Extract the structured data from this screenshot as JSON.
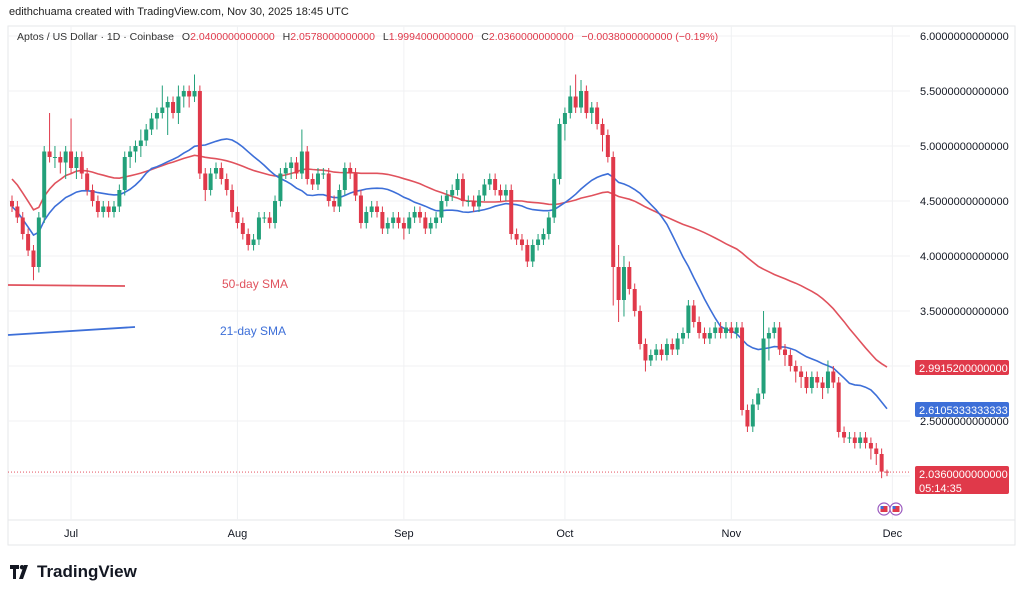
{
  "credit": "edithchuama created with TradingView.com, Nov 30, 2025 18:45 UTC",
  "legend": {
    "symbol": "Aptos / US Dollar · 1D · Coinbase",
    "o_key": "O",
    "o": "2.0400000000000",
    "h_key": "H",
    "h": "2.0578000000000",
    "l_key": "L",
    "l": "1.9994000000000",
    "c_key": "C",
    "c": "2.0360000000000",
    "change": "−0.0038000000000 (−0.19%)"
  },
  "annotations": {
    "sma50": "50-day SMA",
    "sma21": "21-day SMA"
  },
  "logo_text": "TradingView",
  "colors": {
    "up": "#22a07a",
    "down": "#e0394a",
    "sma50": "#e0525d",
    "sma21": "#3d6fd8",
    "grid": "#f0f1f3"
  },
  "chart_data": {
    "type": "candlestick",
    "interval": "1D",
    "date_range": [
      "2025-06-20",
      "2025-11-30"
    ],
    "ylim": [
      1.6,
      6.0
    ],
    "y_ticks": [
      "6.0000000000000",
      "5.5000000000000",
      "5.0000000000000",
      "4.5000000000000",
      "4.0000000000000",
      "3.5000000000000",
      "2.5000000000000"
    ],
    "y_tick_values": [
      6.0,
      5.5,
      5.0,
      4.5,
      4.0,
      3.5,
      2.5
    ],
    "x_ticks": [
      {
        "label": "Jul",
        "index": 11
      },
      {
        "label": "Aug",
        "index": 42
      },
      {
        "label": "Sep",
        "index": 73
      },
      {
        "label": "Oct",
        "index": 103
      },
      {
        "label": "Nov",
        "index": 134
      },
      {
        "label": "Dec",
        "index": 164
      }
    ],
    "price_tags": {
      "sma50": "2.9915200000000",
      "sma21": "2.6105333333333",
      "last": "2.0360000000000",
      "countdown": "05:14:35"
    },
    "sma_values": {
      "sma50": 2.99152,
      "sma21": 2.6105333333333,
      "last": 2.036
    },
    "grid": true,
    "candles_ohlc": [
      [
        4.5,
        4.55,
        4.4,
        4.45
      ],
      [
        4.45,
        4.5,
        4.3,
        4.35
      ],
      [
        4.35,
        4.4,
        4.15,
        4.2
      ],
      [
        4.2,
        4.25,
        4.0,
        4.05
      ],
      [
        4.05,
        4.1,
        3.78,
        3.9
      ],
      [
        3.9,
        4.4,
        3.85,
        4.35
      ],
      [
        4.35,
        5.0,
        4.3,
        4.95
      ],
      [
        4.95,
        5.3,
        4.85,
        4.9
      ],
      [
        4.9,
        5.0,
        4.8,
        4.9
      ],
      [
        4.9,
        4.95,
        4.75,
        4.85
      ],
      [
        4.85,
        5.0,
        4.7,
        4.95
      ],
      [
        4.95,
        5.25,
        4.75,
        4.8
      ],
      [
        4.8,
        4.95,
        4.7,
        4.9
      ],
      [
        4.9,
        4.95,
        4.7,
        4.75
      ],
      [
        4.75,
        4.8,
        4.55,
        4.6
      ],
      [
        4.6,
        4.65,
        4.45,
        4.5
      ],
      [
        4.5,
        4.55,
        4.35,
        4.4
      ],
      [
        4.4,
        4.5,
        4.35,
        4.45
      ],
      [
        4.45,
        4.5,
        4.35,
        4.4
      ],
      [
        4.4,
        4.5,
        4.35,
        4.45
      ],
      [
        4.45,
        4.65,
        4.4,
        4.6
      ],
      [
        4.6,
        4.95,
        4.55,
        4.9
      ],
      [
        4.9,
        5.0,
        4.8,
        4.95
      ],
      [
        4.95,
        5.05,
        4.85,
        5.0
      ],
      [
        5.0,
        5.15,
        4.9,
        5.05
      ],
      [
        5.05,
        5.2,
        5.0,
        5.15
      ],
      [
        5.15,
        5.3,
        5.1,
        5.25
      ],
      [
        5.25,
        5.35,
        5.15,
        5.3
      ],
      [
        5.3,
        5.55,
        5.25,
        5.35
      ],
      [
        5.35,
        5.45,
        5.1,
        5.4
      ],
      [
        5.4,
        5.45,
        5.25,
        5.3
      ],
      [
        5.3,
        5.55,
        5.2,
        5.45
      ],
      [
        5.45,
        5.55,
        5.35,
        5.5
      ],
      [
        5.5,
        5.55,
        5.35,
        5.45
      ],
      [
        5.45,
        5.65,
        5.4,
        5.5
      ],
      [
        5.5,
        5.55,
        4.7,
        4.75
      ],
      [
        4.75,
        4.8,
        4.5,
        4.6
      ],
      [
        4.6,
        4.8,
        4.55,
        4.75
      ],
      [
        4.75,
        4.85,
        4.7,
        4.8
      ],
      [
        4.8,
        4.85,
        4.65,
        4.7
      ],
      [
        4.7,
        4.75,
        4.55,
        4.6
      ],
      [
        4.6,
        4.65,
        4.35,
        4.4
      ],
      [
        4.4,
        4.45,
        4.25,
        4.3
      ],
      [
        4.3,
        4.35,
        4.15,
        4.2
      ],
      [
        4.2,
        4.25,
        4.05,
        4.1
      ],
      [
        4.1,
        4.2,
        4.05,
        4.15
      ],
      [
        4.15,
        4.4,
        4.1,
        4.35
      ],
      [
        4.35,
        4.4,
        4.3,
        4.35
      ],
      [
        4.35,
        4.4,
        4.25,
        4.3
      ],
      [
        4.3,
        4.55,
        4.25,
        4.5
      ],
      [
        4.5,
        4.8,
        4.45,
        4.75
      ],
      [
        4.75,
        4.85,
        4.7,
        4.8
      ],
      [
        4.8,
        4.9,
        4.7,
        4.85
      ],
      [
        4.85,
        4.9,
        4.7,
        4.75
      ],
      [
        4.75,
        5.15,
        4.7,
        4.95
      ],
      [
        4.95,
        5.0,
        4.65,
        4.7
      ],
      [
        4.7,
        4.75,
        4.6,
        4.65
      ],
      [
        4.65,
        4.8,
        4.6,
        4.75
      ],
      [
        4.75,
        4.8,
        4.7,
        4.75
      ],
      [
        4.75,
        4.8,
        4.45,
        4.5
      ],
      [
        4.5,
        4.55,
        4.4,
        4.45
      ],
      [
        4.45,
        4.65,
        4.4,
        4.6
      ],
      [
        4.6,
        4.85,
        4.55,
        4.8
      ],
      [
        4.8,
        4.85,
        4.7,
        4.75
      ],
      [
        4.75,
        4.8,
        4.5,
        4.55
      ],
      [
        4.55,
        4.6,
        4.25,
        4.3
      ],
      [
        4.3,
        4.45,
        4.25,
        4.4
      ],
      [
        4.4,
        4.5,
        4.35,
        4.45
      ],
      [
        4.45,
        4.5,
        4.35,
        4.4
      ],
      [
        4.4,
        4.45,
        4.2,
        4.25
      ],
      [
        4.25,
        4.35,
        4.2,
        4.3
      ],
      [
        4.3,
        4.4,
        4.25,
        4.35
      ],
      [
        4.35,
        4.4,
        4.25,
        4.3
      ],
      [
        4.3,
        4.35,
        4.15,
        4.25
      ],
      [
        4.25,
        4.4,
        4.2,
        4.35
      ],
      [
        4.35,
        4.45,
        4.3,
        4.4
      ],
      [
        4.4,
        4.45,
        4.3,
        4.35
      ],
      [
        4.35,
        4.4,
        4.2,
        4.25
      ],
      [
        4.25,
        4.35,
        4.2,
        4.3
      ],
      [
        4.3,
        4.4,
        4.25,
        4.35
      ],
      [
        4.35,
        4.55,
        4.3,
        4.5
      ],
      [
        4.5,
        4.6,
        4.45,
        4.55
      ],
      [
        4.55,
        4.65,
        4.5,
        4.6
      ],
      [
        4.6,
        4.75,
        4.55,
        4.7
      ],
      [
        4.7,
        4.75,
        4.45,
        4.5
      ],
      [
        4.5,
        4.55,
        4.45,
        4.5
      ],
      [
        4.5,
        4.55,
        4.4,
        4.45
      ],
      [
        4.45,
        4.6,
        4.4,
        4.55
      ],
      [
        4.55,
        4.7,
        4.5,
        4.65
      ],
      [
        4.65,
        4.75,
        4.6,
        4.7
      ],
      [
        4.7,
        4.75,
        4.55,
        4.6
      ],
      [
        4.6,
        4.65,
        4.5,
        4.55
      ],
      [
        4.55,
        4.65,
        4.5,
        4.6
      ],
      [
        4.6,
        4.65,
        4.15,
        4.2
      ],
      [
        4.2,
        4.25,
        4.1,
        4.15
      ],
      [
        4.15,
        4.2,
        4.05,
        4.1
      ],
      [
        4.1,
        4.15,
        3.9,
        3.95
      ],
      [
        3.95,
        4.15,
        3.9,
        4.1
      ],
      [
        4.1,
        4.2,
        4.05,
        4.15
      ],
      [
        4.15,
        4.25,
        4.1,
        4.2
      ],
      [
        4.2,
        4.4,
        4.15,
        4.35
      ],
      [
        4.35,
        4.75,
        4.3,
        4.7
      ],
      [
        4.7,
        5.25,
        4.65,
        5.2
      ],
      [
        5.2,
        5.35,
        5.05,
        5.3
      ],
      [
        5.3,
        5.55,
        5.25,
        5.45
      ],
      [
        5.45,
        5.65,
        5.3,
        5.35
      ],
      [
        5.35,
        5.6,
        5.3,
        5.5
      ],
      [
        5.5,
        5.55,
        5.25,
        5.3
      ],
      [
        5.3,
        5.4,
        5.2,
        5.35
      ],
      [
        5.35,
        5.4,
        5.15,
        5.2
      ],
      [
        5.2,
        5.25,
        4.95,
        5.1
      ],
      [
        5.1,
        5.15,
        4.85,
        4.9
      ],
      [
        4.9,
        4.95,
        3.55,
        3.9
      ],
      [
        3.9,
        4.1,
        3.4,
        3.6
      ],
      [
        3.6,
        4.0,
        3.45,
        3.9
      ],
      [
        3.9,
        3.95,
        3.65,
        3.7
      ],
      [
        3.7,
        3.75,
        3.45,
        3.5
      ],
      [
        3.5,
        3.55,
        3.15,
        3.2
      ],
      [
        3.2,
        3.25,
        2.95,
        3.05
      ],
      [
        3.05,
        3.15,
        3.0,
        3.1
      ],
      [
        3.1,
        3.2,
        3.05,
        3.15
      ],
      [
        3.15,
        3.2,
        3.05,
        3.1
      ],
      [
        3.1,
        3.25,
        3.05,
        3.2
      ],
      [
        3.2,
        3.25,
        3.1,
        3.15
      ],
      [
        3.15,
        3.3,
        3.1,
        3.25
      ],
      [
        3.25,
        3.35,
        3.2,
        3.3
      ],
      [
        3.3,
        3.6,
        3.25,
        3.55
      ],
      [
        3.55,
        3.6,
        3.35,
        3.4
      ],
      [
        3.4,
        3.45,
        3.25,
        3.3
      ],
      [
        3.3,
        3.35,
        3.2,
        3.25
      ],
      [
        3.25,
        3.35,
        3.2,
        3.3
      ],
      [
        3.3,
        3.4,
        3.25,
        3.35
      ],
      [
        3.35,
        3.4,
        3.25,
        3.3
      ],
      [
        3.3,
        3.4,
        3.25,
        3.35
      ],
      [
        3.35,
        3.4,
        3.25,
        3.3
      ],
      [
        3.3,
        3.4,
        3.25,
        3.35
      ],
      [
        3.35,
        3.4,
        2.55,
        2.6
      ],
      [
        2.6,
        2.65,
        2.4,
        2.45
      ],
      [
        2.45,
        2.7,
        2.4,
        2.65
      ],
      [
        2.65,
        2.8,
        2.6,
        2.75
      ],
      [
        2.75,
        3.5,
        2.7,
        3.25
      ],
      [
        3.25,
        3.35,
        3.05,
        3.3
      ],
      [
        3.3,
        3.4,
        3.25,
        3.35
      ],
      [
        3.35,
        3.4,
        3.1,
        3.15
      ],
      [
        3.15,
        3.2,
        3.0,
        3.1
      ],
      [
        3.1,
        3.15,
        2.95,
        3.0
      ],
      [
        3.0,
        3.05,
        2.85,
        2.95
      ],
      [
        2.95,
        3.0,
        2.8,
        2.9
      ],
      [
        2.9,
        2.95,
        2.75,
        2.8
      ],
      [
        2.8,
        2.95,
        2.75,
        2.9
      ],
      [
        2.9,
        2.95,
        2.8,
        2.85
      ],
      [
        2.85,
        2.9,
        2.7,
        2.8
      ],
      [
        2.8,
        3.05,
        2.75,
        2.95
      ],
      [
        2.95,
        3.0,
        2.8,
        2.85
      ],
      [
        2.85,
        2.9,
        2.35,
        2.4
      ],
      [
        2.4,
        2.45,
        2.3,
        2.35
      ],
      [
        2.35,
        2.4,
        2.3,
        2.35
      ],
      [
        2.35,
        2.4,
        2.25,
        2.3
      ],
      [
        2.3,
        2.4,
        2.25,
        2.35
      ],
      [
        2.35,
        2.4,
        2.25,
        2.3
      ],
      [
        2.3,
        2.35,
        2.15,
        2.25
      ],
      [
        2.25,
        2.3,
        2.1,
        2.2
      ],
      [
        2.2,
        2.25,
        1.98,
        2.04
      ],
      [
        2.04,
        2.058,
        1.9994,
        2.036
      ]
    ]
  }
}
